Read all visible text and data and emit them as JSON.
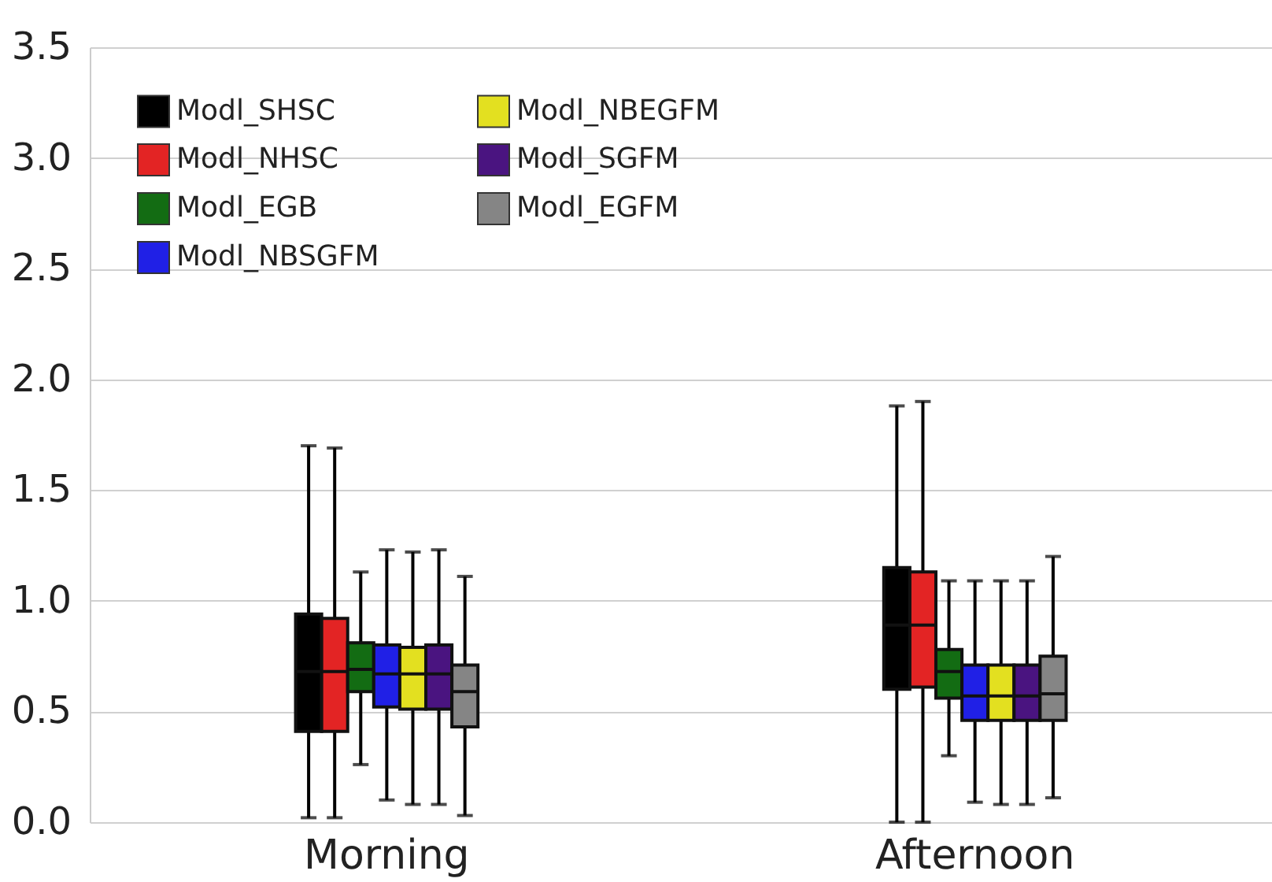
{
  "chart_data": {
    "type": "box",
    "categories": [
      "Morning",
      "Afternoon"
    ],
    "ylim": [
      0,
      3.5
    ],
    "yticks": [
      {
        "value": 0,
        "label": "0.0"
      },
      0.5,
      {
        "value": 1,
        "label": "1.0"
      },
      1.5,
      {
        "value": 2,
        "label": "2.0"
      },
      2.5,
      {
        "value": 3,
        "label": "3.0"
      },
      3.5
    ],
    "grid": "y",
    "legend": "top left",
    "series": [
      {
        "name": "Modl_SHSC",
        "color": "#000000",
        "boxes": [
          {
            "low": 0.02,
            "q1": 0.41,
            "median": 0.68,
            "q3": 0.94,
            "high": 1.7
          },
          {
            "low": 0.0,
            "q1": 0.6,
            "median": 0.89,
            "q3": 1.15,
            "high": 1.88
          }
        ]
      },
      {
        "name": "Modl_NHSC",
        "color": "#e32424",
        "boxes": [
          {
            "low": 0.02,
            "q1": 0.41,
            "median": 0.68,
            "q3": 0.92,
            "high": 1.69
          },
          {
            "low": 0.0,
            "q1": 0.61,
            "median": 0.89,
            "q3": 1.13,
            "high": 1.9
          }
        ]
      },
      {
        "name": "Modl_EGB",
        "color": "#136c13",
        "boxes": [
          {
            "low": 0.26,
            "q1": 0.59,
            "median": 0.69,
            "q3": 0.81,
            "high": 1.13
          },
          {
            "low": 0.3,
            "q1": 0.56,
            "median": 0.68,
            "q3": 0.78,
            "high": 1.09
          }
        ]
      },
      {
        "name": "Modl_NBSGFM",
        "color": "#2020e6",
        "boxes": [
          {
            "low": 0.1,
            "q1": 0.52,
            "median": 0.67,
            "q3": 0.8,
            "high": 1.23
          },
          {
            "low": 0.09,
            "q1": 0.46,
            "median": 0.57,
            "q3": 0.71,
            "high": 1.09
          }
        ]
      },
      {
        "name": "Modl_NBEGFM",
        "color": "#e3e020",
        "boxes": [
          {
            "low": 0.08,
            "q1": 0.51,
            "median": 0.67,
            "q3": 0.79,
            "high": 1.22
          },
          {
            "low": 0.08,
            "q1": 0.46,
            "median": 0.57,
            "q3": 0.71,
            "high": 1.09
          }
        ]
      },
      {
        "name": "Modl_SGFM",
        "color": "#4a1480",
        "boxes": [
          {
            "low": 0.08,
            "q1": 0.51,
            "median": 0.67,
            "q3": 0.8,
            "high": 1.23
          },
          {
            "low": 0.08,
            "q1": 0.46,
            "median": 0.57,
            "q3": 0.71,
            "high": 1.09
          }
        ]
      },
      {
        "name": "Modl_EGFM",
        "color": "#858585",
        "boxes": [
          {
            "low": 0.03,
            "q1": 0.43,
            "median": 0.59,
            "q3": 0.71,
            "high": 1.11
          },
          {
            "low": 0.11,
            "q1": 0.46,
            "median": 0.58,
            "q3": 0.75,
            "high": 1.2
          }
        ]
      }
    ]
  }
}
